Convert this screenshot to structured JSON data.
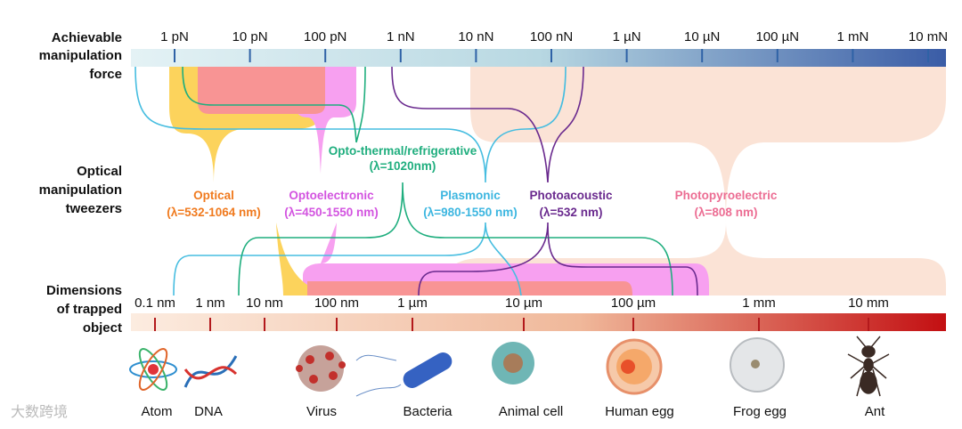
{
  "row_labels": [
    [
      "Achievable",
      "manipulation",
      "force"
    ],
    [
      "Optical",
      "manipulation",
      "tweezers"
    ],
    [
      "Dimensions",
      "of trapped",
      "object"
    ]
  ],
  "force_ticks": [
    "1 pN",
    "10 pN",
    "100 pN",
    "1 nN",
    "10 nN",
    "100 nN",
    "1 µN",
    "10 µN",
    "100 µN",
    "1 mN",
    "10 mN"
  ],
  "tweezers": [
    {
      "name": "Optical",
      "wavelength": "(λ=532-1064 nm)"
    },
    {
      "name": "Optoelectronic",
      "wavelength": "(λ=450-1550 nm)"
    },
    {
      "name": "Opto-thermal/refrigerative",
      "wavelength": "(λ=1020nm)"
    },
    {
      "name": "Plasmonic",
      "wavelength": "(λ=980-1550 nm)"
    },
    {
      "name": "Photoacoustic",
      "wavelength": "(λ=532 nm)"
    },
    {
      "name": "Photopyroelectric",
      "wavelength": "(λ=808 nm)"
    }
  ],
  "size_ticks": [
    "0.1 nm",
    "1 nm",
    "10 nm",
    "100 nm",
    "1 µm",
    "10 µm",
    "100 µm",
    "1 mm",
    "10 mm"
  ],
  "objects": [
    "Atom",
    "DNA",
    "Virus",
    "Bacteria",
    "Animal cell",
    "Human egg",
    "Frog egg",
    "Ant"
  ],
  "watermark": "大数跨境"
}
